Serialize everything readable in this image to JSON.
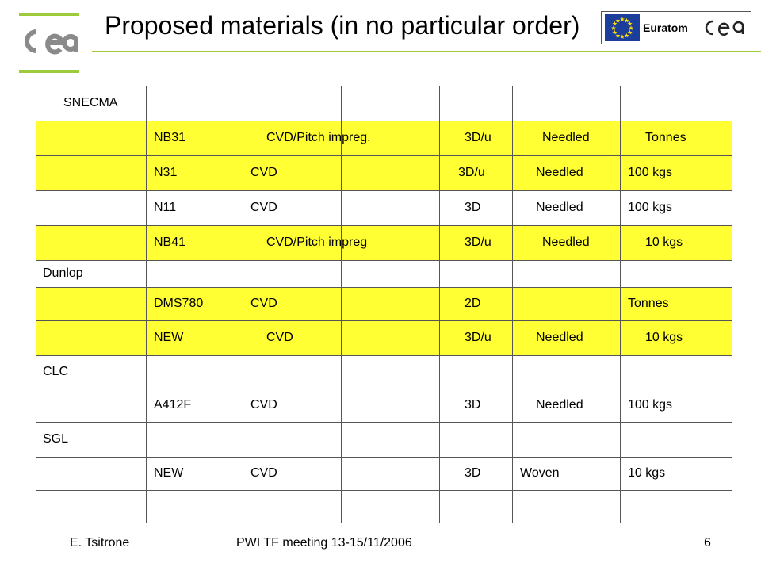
{
  "header": {
    "title": "Proposed materials (in no particular order)",
    "logo_left": "cea",
    "badge_label": "Euratom",
    "badge_logo": "cea",
    "accent_color": "#9ecb3c",
    "highlight_color": "#ffff33"
  },
  "table": {
    "rows": [
      {
        "highlight": false,
        "cells": [
          "SNECMA",
          "",
          "",
          "",
          "",
          "",
          ""
        ]
      },
      {
        "highlight": true,
        "cells": [
          "",
          "NB31",
          "CVD/Pitch impreg.",
          "",
          "3D/u",
          "Needled",
          "Tonnes"
        ]
      },
      {
        "highlight": true,
        "cells": [
          "",
          "N31",
          "CVD",
          "",
          "3D/u",
          "Needled",
          "100 kgs"
        ]
      },
      {
        "highlight": false,
        "cells": [
          "",
          "N11",
          "CVD",
          "",
          "3D",
          "Needled",
          "100 kgs"
        ]
      },
      {
        "highlight": true,
        "cells": [
          "",
          "NB41",
          "CVD/Pitch impreg",
          "",
          "3D/u",
          "Needled",
          "10 kgs"
        ]
      },
      {
        "highlight": false,
        "cells": [
          "Dunlop",
          "",
          "",
          "",
          "",
          "",
          ""
        ]
      },
      {
        "highlight": true,
        "cells": [
          "",
          "DMS780",
          "CVD",
          "",
          "2D",
          "",
          "Tonnes"
        ]
      },
      {
        "highlight": true,
        "cells": [
          "",
          "NEW",
          "CVD",
          "",
          "3D/u",
          "Needled",
          "10 kgs"
        ]
      },
      {
        "highlight": false,
        "cells": [
          "CLC",
          "",
          "",
          "",
          "",
          "",
          ""
        ]
      },
      {
        "highlight": false,
        "cells": [
          "",
          "A412F",
          "CVD",
          "",
          "3D",
          "Needled",
          "100 kgs"
        ]
      },
      {
        "highlight": false,
        "cells": [
          "SGL",
          "",
          "",
          "",
          "",
          "",
          ""
        ]
      },
      {
        "highlight": false,
        "cells": [
          "",
          "NEW",
          "CVD",
          "",
          "3D",
          "Woven",
          "10 kgs"
        ]
      },
      {
        "highlight": false,
        "cells": [
          "",
          "",
          "",
          "",
          "",
          "",
          ""
        ]
      }
    ]
  },
  "footer": {
    "author": "E. Tsitrone",
    "meeting": "PWI TF meeting  13-15/11/2006",
    "page_number": "6"
  }
}
